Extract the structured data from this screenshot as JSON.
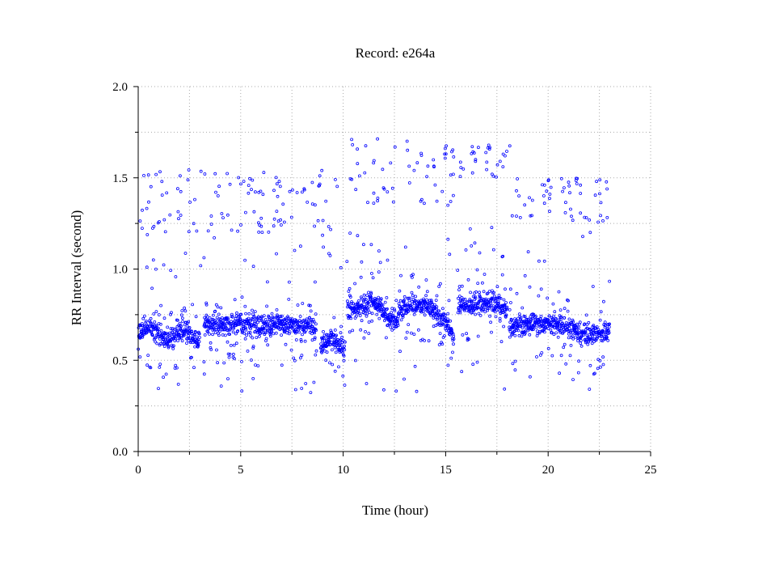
{
  "chart_data": {
    "type": "scatter",
    "title": "Record:  e264a",
    "xlabel": "Time (hour)",
    "ylabel": "RR Interval (second)",
    "xlim": [
      0,
      25
    ],
    "ylim": [
      0.0,
      2.0
    ],
    "x_ticks": [
      0,
      5,
      10,
      15,
      20,
      25
    ],
    "x_tick_labels": [
      "0",
      "5",
      "10",
      "15",
      "20",
      "25"
    ],
    "y_ticks": [
      0.0,
      0.5,
      1.0,
      1.5,
      2.0
    ],
    "y_tick_labels": [
      "0.0",
      "0.5",
      "1.0",
      "1.5",
      "2.0"
    ],
    "grid": true,
    "marker_color": "#0000ff",
    "series": [
      {
        "segments": [
          {
            "x": [
              0.0,
              0.5,
              1.0,
              1.5,
              2.0,
              2.5,
              3.0
            ],
            "y": [
              0.66,
              0.68,
              0.65,
              0.6,
              0.66,
              0.65,
              0.6
            ]
          },
          {
            "x": [
              3.2,
              4.0,
              5.0,
              6.0,
              7.0,
              8.0,
              8.7
            ],
            "y": [
              0.7,
              0.69,
              0.7,
              0.69,
              0.7,
              0.69,
              0.68
            ]
          },
          {
            "x": [
              8.9,
              9.4,
              9.9,
              10.1
            ],
            "y": [
              0.58,
              0.62,
              0.58,
              0.56
            ]
          },
          {
            "x": [
              10.2,
              11.0,
              11.5,
              12.0,
              12.5,
              13.0,
              13.5,
              14.0,
              14.5,
              15.0,
              15.4
            ],
            "y": [
              0.78,
              0.8,
              0.82,
              0.75,
              0.72,
              0.8,
              0.8,
              0.8,
              0.76,
              0.72,
              0.62
            ]
          },
          {
            "x": [
              15.6,
              16.0,
              16.5,
              17.0,
              17.5,
              18.0
            ],
            "y": [
              0.8,
              0.8,
              0.8,
              0.82,
              0.8,
              0.78
            ]
          },
          {
            "x": [
              18.1,
              19.0,
              20.0,
              21.0,
              21.5,
              22.0,
              22.5,
              23.0
            ],
            "y": [
              0.69,
              0.7,
              0.7,
              0.68,
              0.66,
              0.62,
              0.66,
              0.65
            ]
          }
        ],
        "outlier_bands": [
          {
            "x": [
              0.0,
              9.8
            ],
            "y": [
              1.2,
              1.55
            ]
          },
          {
            "x": [
              10.2,
              15.5
            ],
            "y": [
              1.35,
              1.72
            ]
          },
          {
            "x": [
              15.6,
              18.2
            ],
            "y": [
              1.5,
              1.68
            ]
          },
          {
            "x": [
              18.2,
              23.1
            ],
            "y": [
              1.25,
              1.5
            ]
          }
        ]
      }
    ]
  }
}
